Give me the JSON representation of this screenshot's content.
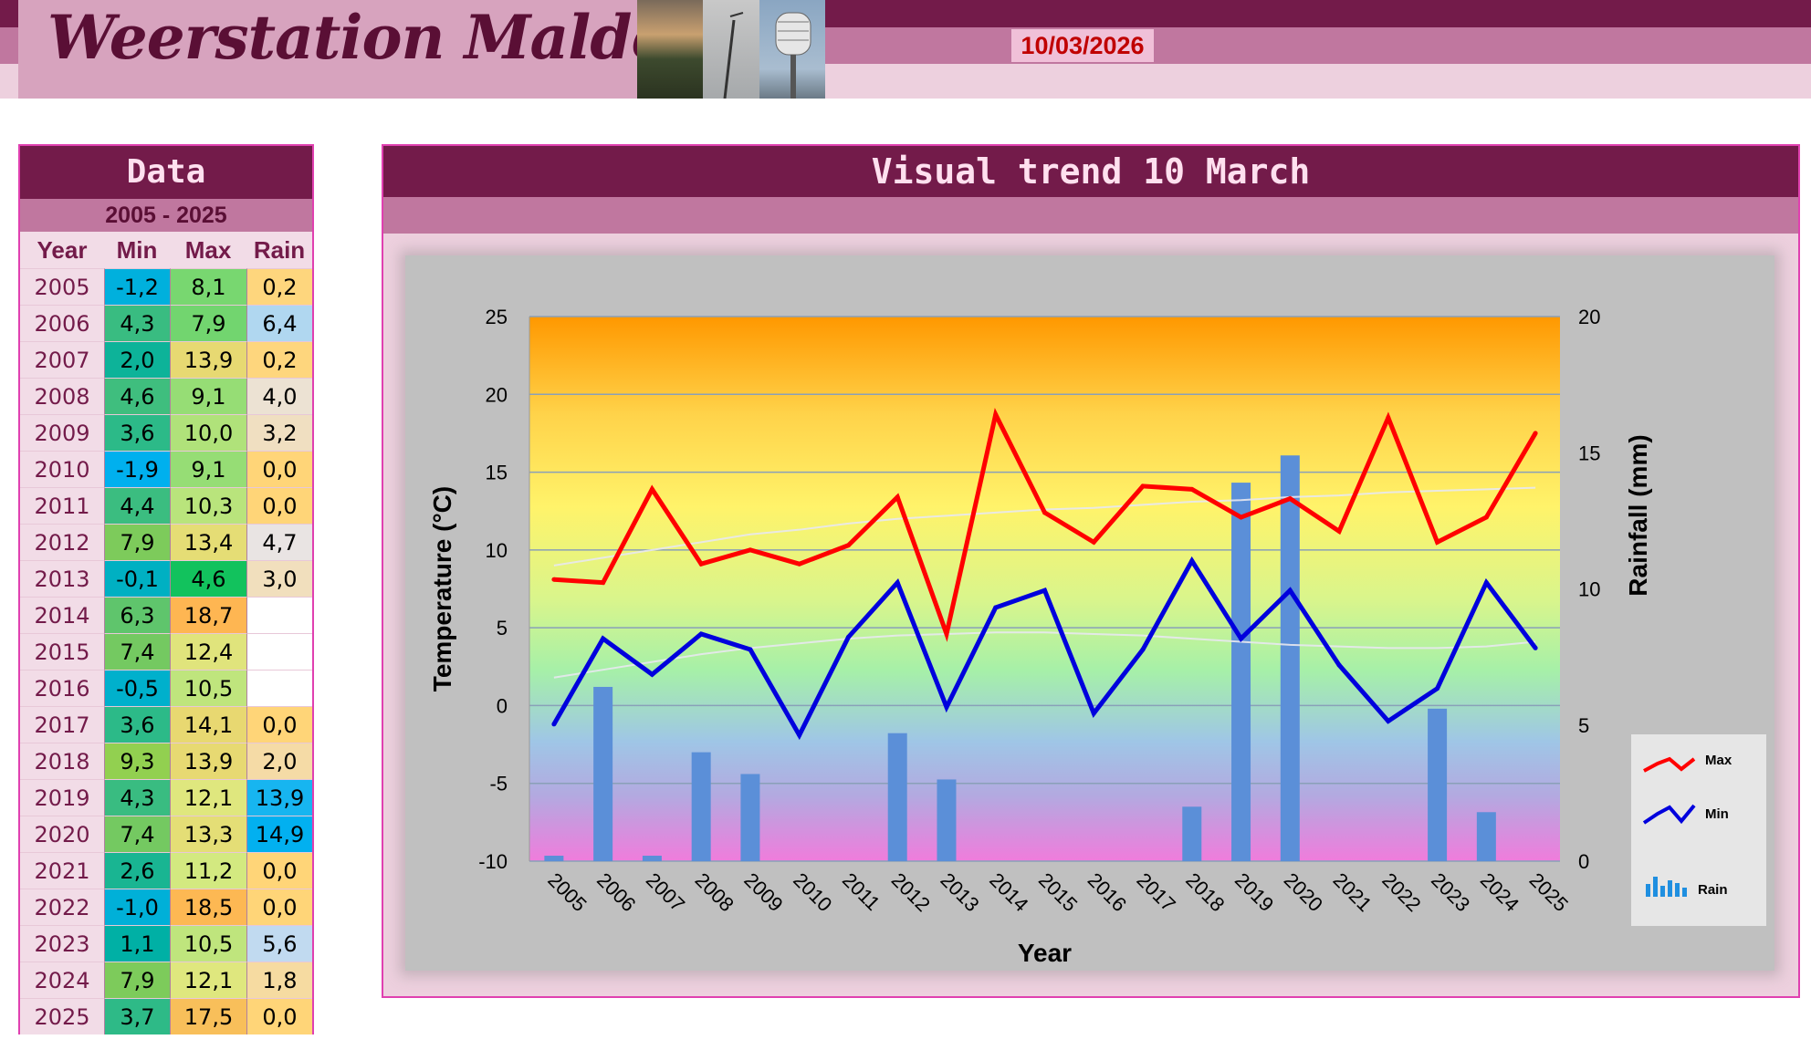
{
  "header": {
    "site_title": "Weerstation Malderen",
    "date": "10/03/2026"
  },
  "table": {
    "title": "Data",
    "range": "2005 - 2025",
    "headers": [
      "Year",
      "Min",
      "Max",
      "Rain"
    ],
    "rows": [
      {
        "year": "2005",
        "min": "-1,2",
        "max": "8,1",
        "rain": "0,2"
      },
      {
        "year": "2006",
        "min": "4,3",
        "max": "7,9",
        "rain": "6,4"
      },
      {
        "year": "2007",
        "min": "2,0",
        "max": "13,9",
        "rain": "0,2"
      },
      {
        "year": "2008",
        "min": "4,6",
        "max": "9,1",
        "rain": "4,0"
      },
      {
        "year": "2009",
        "min": "3,6",
        "max": "10,0",
        "rain": "3,2"
      },
      {
        "year": "2010",
        "min": "-1,9",
        "max": "9,1",
        "rain": "0,0"
      },
      {
        "year": "2011",
        "min": "4,4",
        "max": "10,3",
        "rain": "0,0"
      },
      {
        "year": "2012",
        "min": "7,9",
        "max": "13,4",
        "rain": "4,7"
      },
      {
        "year": "2013",
        "min": "-0,1",
        "max": "4,6",
        "rain": "3,0"
      },
      {
        "year": "2014",
        "min": "6,3",
        "max": "18,7",
        "rain": ""
      },
      {
        "year": "2015",
        "min": "7,4",
        "max": "12,4",
        "rain": ""
      },
      {
        "year": "2016",
        "min": "-0,5",
        "max": "10,5",
        "rain": ""
      },
      {
        "year": "2017",
        "min": "3,6",
        "max": "14,1",
        "rain": "0,0"
      },
      {
        "year": "2018",
        "min": "9,3",
        "max": "13,9",
        "rain": "2,0"
      },
      {
        "year": "2019",
        "min": "4,3",
        "max": "12,1",
        "rain": "13,9"
      },
      {
        "year": "2020",
        "min": "7,4",
        "max": "13,3",
        "rain": "14,9"
      },
      {
        "year": "2021",
        "min": "2,6",
        "max": "11,2",
        "rain": "0,0"
      },
      {
        "year": "2022",
        "min": "-1,0",
        "max": "18,5",
        "rain": "0,0"
      },
      {
        "year": "2023",
        "min": "1,1",
        "max": "10,5",
        "rain": "5,6"
      },
      {
        "year": "2024",
        "min": "7,9",
        "max": "12,1",
        "rain": "1,8"
      },
      {
        "year": "2025",
        "min": "3,7",
        "max": "17,5",
        "rain": "0,0"
      }
    ]
  },
  "colors": {
    "max_line": "#ff0000",
    "min_line": "#0000dd",
    "rain_bar": "#5b8fd8",
    "trend_line": "#e8e8f0"
  },
  "chart_data": {
    "type": "line",
    "title": "Visual trend 10 March",
    "xlabel": "Year",
    "ylabel": "Temperature (°C)",
    "y2label": "Rainfall (mm)",
    "ylim": [
      -10,
      25
    ],
    "y2lim": [
      0,
      20
    ],
    "yticks": [
      -10,
      -5,
      0,
      5,
      10,
      15,
      20,
      25
    ],
    "y2ticks": [
      0,
      5,
      10,
      15,
      20
    ],
    "grid": true,
    "legend_position": "bottom-right",
    "categories": [
      "2005",
      "2006",
      "2007",
      "2008",
      "2009",
      "2010",
      "2011",
      "2012",
      "2013",
      "2014",
      "2015",
      "2016",
      "2017",
      "2018",
      "2019",
      "2020",
      "2021",
      "2022",
      "2023",
      "2024",
      "2025"
    ],
    "series": [
      {
        "name": "Max",
        "type": "line",
        "axis": "left",
        "values": [
          8.1,
          7.9,
          13.9,
          9.1,
          10.0,
          9.1,
          10.3,
          13.4,
          4.6,
          18.7,
          12.4,
          10.5,
          14.1,
          13.9,
          12.1,
          13.3,
          11.2,
          18.5,
          10.5,
          12.1,
          17.5
        ]
      },
      {
        "name": "Min",
        "type": "line",
        "axis": "left",
        "values": [
          -1.2,
          4.3,
          2.0,
          4.6,
          3.6,
          -1.9,
          4.4,
          7.9,
          -0.1,
          6.3,
          7.4,
          -0.5,
          3.6,
          9.3,
          4.3,
          7.4,
          2.6,
          -1.0,
          1.1,
          7.9,
          3.7
        ]
      },
      {
        "name": "Rain",
        "type": "bar",
        "axis": "right",
        "values": [
          0.2,
          6.4,
          0.2,
          4.0,
          3.2,
          0.0,
          0.0,
          4.7,
          3.0,
          null,
          null,
          null,
          0.0,
          2.0,
          13.9,
          14.9,
          0.0,
          0.0,
          5.6,
          1.8,
          0.0
        ]
      }
    ],
    "trendlines": [
      {
        "of": "Max",
        "values": [
          9.0,
          9.5,
          10.0,
          10.5,
          11.0,
          11.3,
          11.7,
          12.0,
          12.2,
          12.4,
          12.6,
          12.7,
          12.9,
          13.1,
          13.2,
          13.4,
          13.5,
          13.7,
          13.8,
          13.9,
          14.0
        ]
      },
      {
        "of": "Min",
        "values": [
          1.8,
          2.3,
          2.8,
          3.3,
          3.7,
          4.0,
          4.3,
          4.5,
          4.6,
          4.7,
          4.7,
          4.6,
          4.5,
          4.3,
          4.1,
          3.9,
          3.8,
          3.7,
          3.7,
          3.8,
          4.1
        ]
      }
    ]
  }
}
